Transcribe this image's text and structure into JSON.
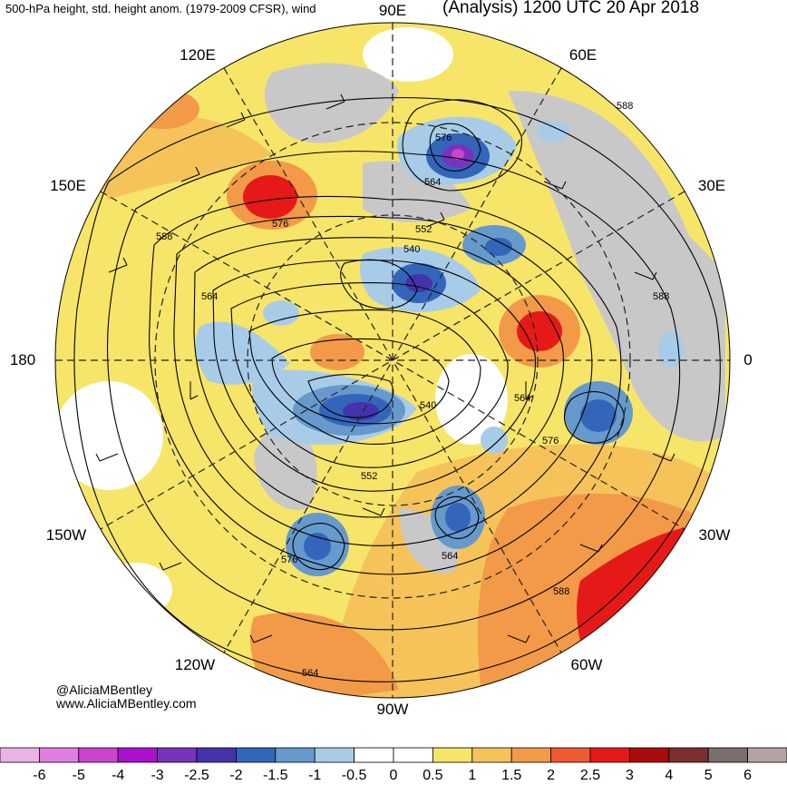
{
  "header": {
    "subtitle": "500-hPa height, std. height anom. (1979-2009 CFSR), wind",
    "title": "(Analysis) 1200 UTC 20 Apr 2018"
  },
  "credits": {
    "handle": "@AliciaMBentley",
    "website": "www.AliciaMBentley.com"
  },
  "longitude_labels": {
    "e90": "90E",
    "e60": "60E",
    "e30": "30E",
    "zero": "0",
    "w30": "30W",
    "w60": "60W",
    "w90": "90W",
    "w120": "120W",
    "w150": "150W",
    "dateline": "180",
    "e150": "150E",
    "e120": "120E"
  },
  "contour_labels": [
    "588",
    "576",
    "564",
    "552",
    "540",
    "564",
    "576",
    "588",
    "552",
    "540",
    "564",
    "576",
    "588",
    "564",
    "576",
    "588",
    "564",
    "576"
  ],
  "colorbar": {
    "ticks": [
      "-6",
      "-5",
      "-4",
      "-3",
      "-2.5",
      "-2",
      "-1.5",
      "-1",
      "-0.5",
      "0",
      "0.5",
      "1",
      "1.5",
      "2",
      "2.5",
      "3",
      "4",
      "5",
      "6"
    ],
    "colors": [
      "#e8b4e8",
      "#e07ee0",
      "#cc44cc",
      "#aa11cc",
      "#7733bb",
      "#4433aa",
      "#3366bb",
      "#6699cc",
      "#a8cce8",
      "#ffffff",
      "#ffffff",
      "#f7e56a",
      "#f5c35a",
      "#f29a48",
      "#f05a33",
      "#e61919",
      "#a80c0c",
      "#7a3030",
      "#7a6e6e",
      "#b3a3a3"
    ]
  },
  "colors": {
    "land_gray": "#c8c8c8",
    "coast": "#555555"
  }
}
